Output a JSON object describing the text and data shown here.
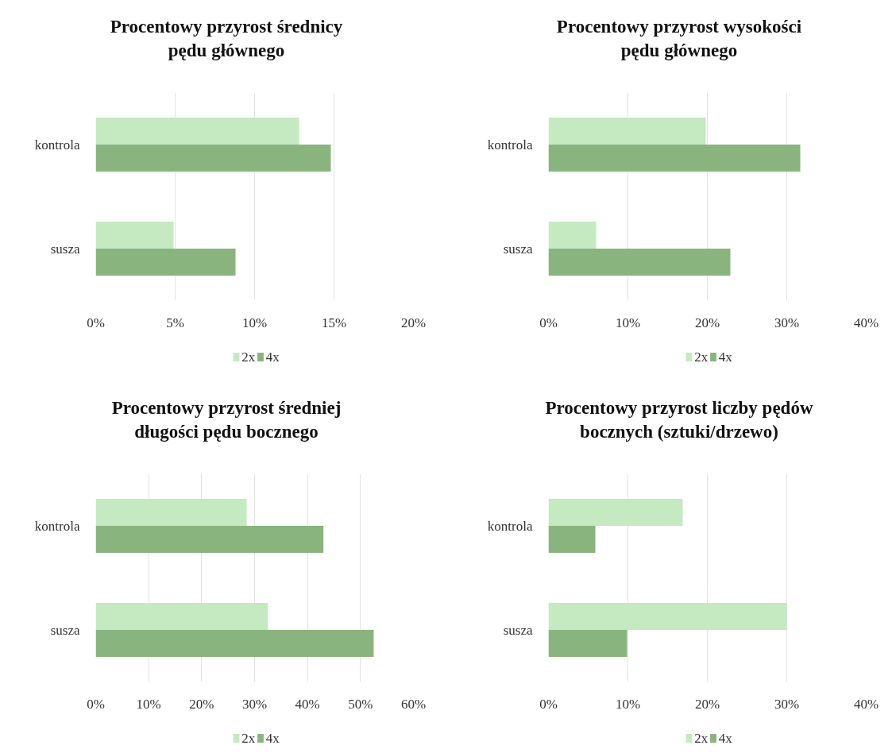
{
  "chart_data": [
    {
      "type": "bar",
      "orientation": "horizontal",
      "title": "Procentowy przyrost średnicy pędu głównego",
      "categories": [
        "kontrola",
        "susza"
      ],
      "series": [
        {
          "name": "2x",
          "color": "#c5e9c0",
          "values": [
            12.8,
            4.9
          ]
        },
        {
          "name": "4x",
          "color": "#8ab47e",
          "values": [
            14.8,
            8.8
          ]
        }
      ],
      "xlim": [
        0,
        20
      ],
      "xticks": [
        {
          "value": 0,
          "label": "0%"
        },
        {
          "value": 5,
          "label": "5%"
        },
        {
          "value": 10,
          "label": "10%"
        },
        {
          "value": 15,
          "label": "15%"
        },
        {
          "value": 20,
          "label": "20%"
        }
      ],
      "grid": "x",
      "legend": "bottom"
    },
    {
      "type": "bar",
      "orientation": "horizontal",
      "title": "Procentowy przyrost wysokości pędu głównego",
      "categories": [
        "kontrola",
        "susza"
      ],
      "series": [
        {
          "name": "2x",
          "color": "#c5e9c0",
          "values": [
            19.8,
            6
          ]
        },
        {
          "name": "4x",
          "color": "#8ab47e",
          "values": [
            31.7,
            22.9
          ]
        }
      ],
      "xlim": [
        0,
        40
      ],
      "xticks": [
        {
          "value": 0,
          "label": "0%"
        },
        {
          "value": 10,
          "label": "10%"
        },
        {
          "value": 20,
          "label": "20%"
        },
        {
          "value": 30,
          "label": "30%"
        },
        {
          "value": 40,
          "label": "40%"
        }
      ],
      "grid": "x",
      "legend": "bottom"
    },
    {
      "type": "bar",
      "orientation": "horizontal",
      "title": "Procentowy przyrost średniej długości pędu bocznego",
      "categories": [
        "kontrola",
        "susza"
      ],
      "series": [
        {
          "name": "2x",
          "color": "#c5e9c0",
          "values": [
            28.5,
            32.5
          ]
        },
        {
          "name": "4x",
          "color": "#8ab47e",
          "values": [
            43,
            52.5
          ]
        }
      ],
      "xlim": [
        0,
        60
      ],
      "xticks": [
        {
          "value": 0,
          "label": "0%"
        },
        {
          "value": 10,
          "label": "10%"
        },
        {
          "value": 20,
          "label": "20%"
        },
        {
          "value": 30,
          "label": "30%"
        },
        {
          "value": 40,
          "label": "40%"
        },
        {
          "value": 50,
          "label": "50%"
        },
        {
          "value": 60,
          "label": "60%"
        }
      ],
      "grid": "x",
      "legend": "bottom"
    },
    {
      "type": "bar",
      "orientation": "horizontal",
      "title": "Procentowy przyrost liczby pędów bocznych (sztuki/drzewo)",
      "categories": [
        "kontrola",
        "susza"
      ],
      "series": [
        {
          "name": "2x",
          "color": "#c5e9c0",
          "values": [
            16.9,
            30
          ]
        },
        {
          "name": "4x",
          "color": "#8ab47e",
          "values": [
            5.9,
            9.9
          ]
        }
      ],
      "xlim": [
        0,
        40
      ],
      "xticks": [
        {
          "value": 0,
          "label": "0%"
        },
        {
          "value": 10,
          "label": "10%"
        },
        {
          "value": 20,
          "label": "20%"
        },
        {
          "value": 30,
          "label": "30%"
        },
        {
          "value": 40,
          "label": "40%"
        }
      ],
      "grid": "x",
      "legend": "bottom"
    }
  ]
}
